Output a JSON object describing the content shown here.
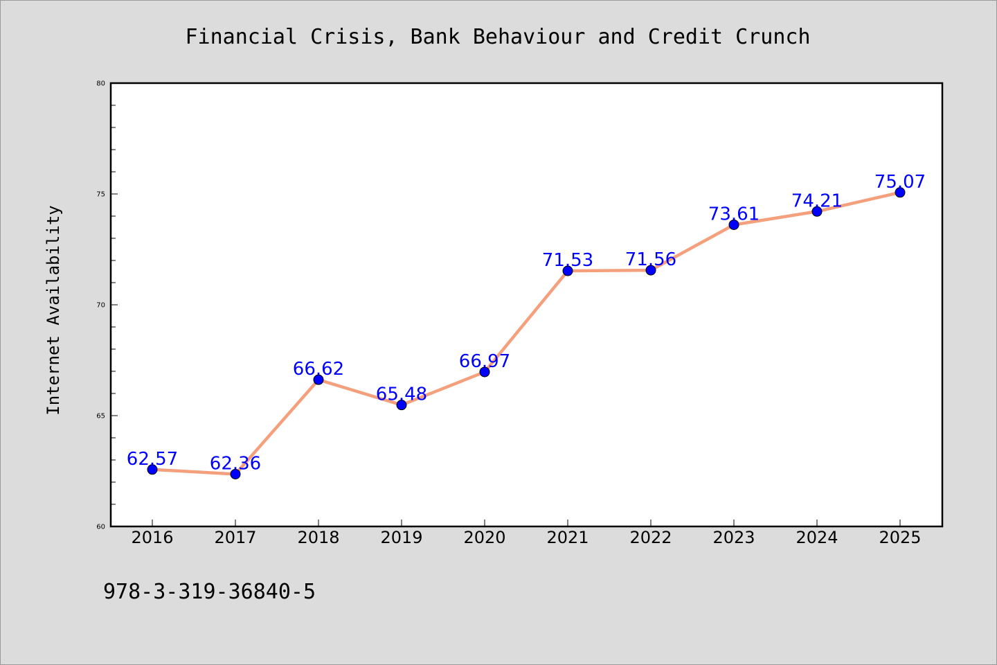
{
  "chart_data": {
    "type": "line",
    "title": "Financial Crisis, Bank Behaviour and Credit Crunch",
    "xlabel": "",
    "ylabel": "Internet Availability",
    "categories": [
      "2016",
      "2017",
      "2018",
      "2019",
      "2020",
      "2021",
      "2022",
      "2023",
      "2024",
      "2025"
    ],
    "series": [
      {
        "values": [
          62.57,
          62.36,
          66.62,
          65.48,
          66.97,
          71.53,
          71.56,
          73.61,
          74.21,
          75.07
        ],
        "data_labels": [
          "62.57",
          "62.36",
          "66.62",
          "65.48",
          "66.97",
          "71.53",
          "71.56",
          "73.61",
          "74.21",
          "75.07"
        ],
        "line_color": "#f4a07d",
        "marker_color": "#0000ff",
        "label_color": "#0000ff"
      }
    ],
    "ylim": [
      60,
      80
    ],
    "yticks": [
      "60",
      "65",
      "70",
      "75",
      "80"
    ],
    "grid": false,
    "legend": "none"
  },
  "footnote": "978-3-319-36840-5",
  "colors": {
    "background": "#dcdcdc",
    "plot_background": "#ffffff",
    "axis": "#000000"
  }
}
